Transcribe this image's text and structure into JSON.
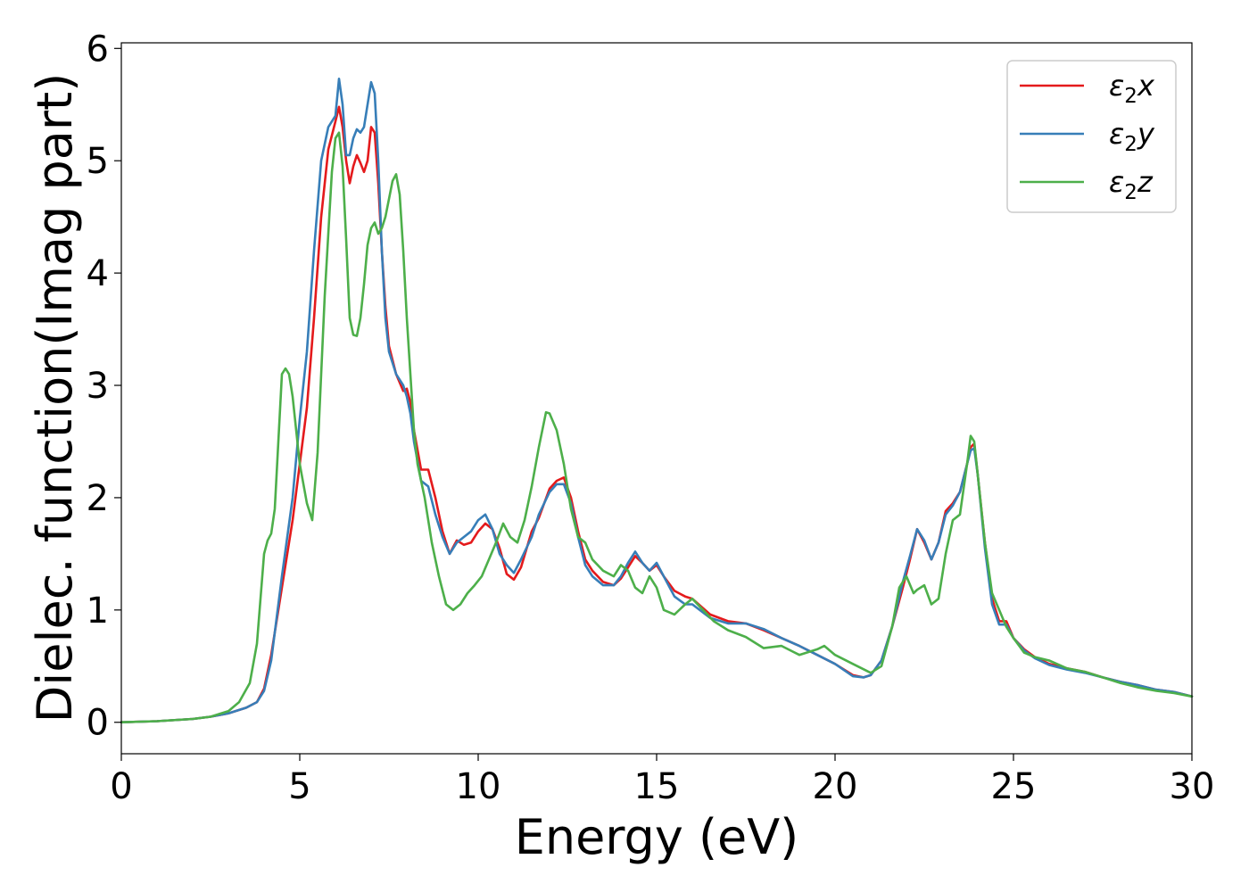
{
  "chart_data": {
    "type": "line",
    "xlabel": "Energy (eV)",
    "ylabel": "Dielec. function(Imag part)",
    "xlim": [
      0,
      30
    ],
    "ylim": [
      -0.28,
      6.05
    ],
    "xticks": [
      0,
      5,
      10,
      15,
      20,
      25,
      30
    ],
    "yticks": [
      0,
      1,
      2,
      3,
      4,
      5,
      6
    ],
    "grid": false,
    "legend_position": "top-right",
    "series": [
      {
        "name": "ε₂x",
        "legend_base": "ε",
        "legend_sub": "2",
        "legend_var": "x",
        "color": "#e41a1c",
        "x": [
          0,
          1,
          2,
          2.5,
          3,
          3.5,
          3.8,
          4.0,
          4.2,
          4.5,
          4.8,
          5.0,
          5.2,
          5.4,
          5.6,
          5.8,
          6.0,
          6.1,
          6.2,
          6.3,
          6.4,
          6.5,
          6.6,
          6.7,
          6.8,
          6.9,
          7.0,
          7.1,
          7.2,
          7.3,
          7.4,
          7.5,
          7.7,
          7.9,
          8.0,
          8.1,
          8.2,
          8.4,
          8.6,
          8.8,
          9.0,
          9.2,
          9.4,
          9.6,
          9.8,
          10.0,
          10.2,
          10.4,
          10.6,
          10.8,
          11.0,
          11.2,
          11.5,
          11.7,
          12.0,
          12.2,
          12.4,
          12.6,
          12.8,
          13.0,
          13.2,
          13.5,
          13.8,
          14.0,
          14.2,
          14.4,
          14.6,
          14.8,
          15.0,
          15.2,
          15.5,
          15.8,
          16.0,
          16.5,
          17.0,
          17.5,
          18.0,
          18.5,
          19.0,
          19.5,
          20.0,
          20.5,
          20.8,
          21.0,
          21.3,
          21.6,
          21.9,
          22.1,
          22.3,
          22.5,
          22.7,
          22.9,
          23.1,
          23.3,
          23.5,
          23.7,
          23.8,
          23.9,
          24.0,
          24.2,
          24.4,
          24.6,
          24.8,
          25.0,
          25.3,
          25.6,
          26.0,
          26.5,
          27.0,
          27.5,
          28.0,
          28.5,
          29.0,
          29.5,
          30.0
        ],
        "y": [
          0,
          0.01,
          0.03,
          0.05,
          0.08,
          0.13,
          0.18,
          0.3,
          0.6,
          1.2,
          1.8,
          2.3,
          2.8,
          3.6,
          4.5,
          5.1,
          5.35,
          5.48,
          5.3,
          5.0,
          4.8,
          4.95,
          5.05,
          4.98,
          4.9,
          5.0,
          5.3,
          5.25,
          4.8,
          4.2,
          3.7,
          3.35,
          3.1,
          2.95,
          2.97,
          2.85,
          2.6,
          2.25,
          2.25,
          2.0,
          1.7,
          1.5,
          1.62,
          1.58,
          1.6,
          1.7,
          1.77,
          1.72,
          1.55,
          1.32,
          1.27,
          1.38,
          1.7,
          1.82,
          2.08,
          2.15,
          2.18,
          2.0,
          1.7,
          1.45,
          1.35,
          1.25,
          1.22,
          1.28,
          1.38,
          1.48,
          1.42,
          1.35,
          1.4,
          1.3,
          1.17,
          1.12,
          1.1,
          0.96,
          0.9,
          0.88,
          0.82,
          0.75,
          0.68,
          0.6,
          0.52,
          0.42,
          0.4,
          0.42,
          0.55,
          0.85,
          1.2,
          1.45,
          1.72,
          1.6,
          1.45,
          1.6,
          1.88,
          1.95,
          2.05,
          2.3,
          2.45,
          2.48,
          2.2,
          1.6,
          1.1,
          0.9,
          0.9,
          0.75,
          0.65,
          0.58,
          0.52,
          0.48,
          0.45,
          0.4,
          0.36,
          0.33,
          0.29,
          0.27,
          0.23
        ]
      },
      {
        "name": "ε₂y",
        "legend_base": "ε",
        "legend_sub": "2",
        "legend_var": "y",
        "color": "#377eb8",
        "x": [
          0,
          1,
          2,
          2.5,
          3,
          3.5,
          3.8,
          4.0,
          4.2,
          4.5,
          4.8,
          5.0,
          5.2,
          5.4,
          5.6,
          5.8,
          6.0,
          6.1,
          6.2,
          6.3,
          6.4,
          6.5,
          6.6,
          6.7,
          6.8,
          6.9,
          7.0,
          7.1,
          7.2,
          7.3,
          7.4,
          7.5,
          7.7,
          7.9,
          8.0,
          8.1,
          8.2,
          8.4,
          8.6,
          8.8,
          9.0,
          9.2,
          9.4,
          9.6,
          9.8,
          10.0,
          10.2,
          10.4,
          10.6,
          10.8,
          11.0,
          11.2,
          11.5,
          11.7,
          12.0,
          12.2,
          12.4,
          12.6,
          12.8,
          13.0,
          13.2,
          13.5,
          13.8,
          14.0,
          14.2,
          14.4,
          14.6,
          14.8,
          15.0,
          15.2,
          15.5,
          15.8,
          16.0,
          16.5,
          17.0,
          17.5,
          18.0,
          18.5,
          19.0,
          19.5,
          20.0,
          20.5,
          20.8,
          21.0,
          21.3,
          21.6,
          21.9,
          22.1,
          22.3,
          22.5,
          22.7,
          22.9,
          23.1,
          23.3,
          23.5,
          23.7,
          23.8,
          23.9,
          24.0,
          24.2,
          24.4,
          24.6,
          24.8,
          25.0,
          25.3,
          25.6,
          26.0,
          26.5,
          27.0,
          27.5,
          28.0,
          28.5,
          29.0,
          29.5,
          30.0
        ],
        "y": [
          0,
          0.01,
          0.03,
          0.05,
          0.08,
          0.13,
          0.18,
          0.28,
          0.55,
          1.3,
          2.0,
          2.7,
          3.3,
          4.2,
          5.0,
          5.3,
          5.4,
          5.73,
          5.5,
          5.05,
          5.05,
          5.2,
          5.28,
          5.25,
          5.3,
          5.5,
          5.7,
          5.6,
          5.0,
          4.2,
          3.6,
          3.3,
          3.1,
          3.0,
          2.9,
          2.75,
          2.5,
          2.15,
          2.1,
          1.85,
          1.65,
          1.5,
          1.6,
          1.65,
          1.7,
          1.8,
          1.85,
          1.72,
          1.5,
          1.4,
          1.33,
          1.45,
          1.65,
          1.85,
          2.05,
          2.12,
          2.12,
          1.95,
          1.65,
          1.4,
          1.3,
          1.22,
          1.22,
          1.3,
          1.42,
          1.52,
          1.42,
          1.35,
          1.42,
          1.3,
          1.12,
          1.05,
          1.05,
          0.93,
          0.88,
          0.88,
          0.83,
          0.75,
          0.68,
          0.6,
          0.52,
          0.41,
          0.4,
          0.42,
          0.55,
          0.85,
          1.25,
          1.48,
          1.72,
          1.62,
          1.45,
          1.6,
          1.85,
          1.93,
          2.05,
          2.3,
          2.42,
          2.44,
          2.2,
          1.55,
          1.05,
          0.87,
          0.87,
          0.75,
          0.64,
          0.57,
          0.51,
          0.47,
          0.44,
          0.4,
          0.36,
          0.33,
          0.29,
          0.27,
          0.23
        ]
      },
      {
        "name": "ε₂z",
        "legend_base": "ε",
        "legend_sub": "2",
        "legend_var": "z",
        "color": "#4daf4a",
        "x": [
          0,
          1,
          2,
          2.5,
          3,
          3.3,
          3.6,
          3.8,
          3.9,
          4.0,
          4.1,
          4.2,
          4.3,
          4.4,
          4.5,
          4.6,
          4.7,
          4.8,
          5.0,
          5.2,
          5.35,
          5.5,
          5.7,
          5.9,
          6.0,
          6.1,
          6.2,
          6.3,
          6.4,
          6.5,
          6.6,
          6.7,
          6.8,
          6.9,
          7.0,
          7.1,
          7.2,
          7.3,
          7.4,
          7.6,
          7.7,
          7.8,
          7.9,
          8.0,
          8.1,
          8.2,
          8.3,
          8.5,
          8.7,
          8.9,
          9.1,
          9.3,
          9.5,
          9.7,
          9.9,
          10.1,
          10.3,
          10.5,
          10.7,
          10.9,
          11.1,
          11.3,
          11.5,
          11.7,
          11.9,
          12.0,
          12.2,
          12.4,
          12.6,
          12.8,
          13.0,
          13.2,
          13.5,
          13.8,
          14.0,
          14.2,
          14.4,
          14.6,
          14.8,
          15.0,
          15.2,
          15.5,
          15.8,
          16.0,
          16.3,
          16.6,
          17.0,
          17.5,
          18.0,
          18.5,
          19.0,
          19.5,
          19.7,
          20.0,
          20.5,
          21.0,
          21.3,
          21.6,
          21.8,
          22.0,
          22.2,
          22.3,
          22.5,
          22.7,
          22.9,
          23.1,
          23.3,
          23.5,
          23.7,
          23.8,
          23.9,
          24.0,
          24.2,
          24.4,
          24.6,
          24.8,
          25.0,
          25.3,
          25.6,
          26.0,
          26.5,
          27.0,
          27.5,
          28.0,
          28.5,
          29.0,
          29.5,
          30.0
        ],
        "y": [
          0,
          0.01,
          0.03,
          0.05,
          0.1,
          0.18,
          0.35,
          0.7,
          1.1,
          1.5,
          1.62,
          1.68,
          1.9,
          2.5,
          3.1,
          3.15,
          3.1,
          2.9,
          2.3,
          1.95,
          1.8,
          2.4,
          3.8,
          4.9,
          5.2,
          5.25,
          4.95,
          4.3,
          3.6,
          3.45,
          3.44,
          3.6,
          3.9,
          4.25,
          4.4,
          4.45,
          4.35,
          4.4,
          4.5,
          4.82,
          4.88,
          4.7,
          4.2,
          3.6,
          3.1,
          2.6,
          2.3,
          2.0,
          1.6,
          1.3,
          1.05,
          1.0,
          1.05,
          1.15,
          1.22,
          1.3,
          1.45,
          1.6,
          1.77,
          1.65,
          1.6,
          1.8,
          2.1,
          2.45,
          2.76,
          2.75,
          2.6,
          2.3,
          1.9,
          1.65,
          1.6,
          1.45,
          1.35,
          1.3,
          1.4,
          1.35,
          1.2,
          1.15,
          1.3,
          1.2,
          1.0,
          0.96,
          1.05,
          1.1,
          1.0,
          0.9,
          0.82,
          0.76,
          0.66,
          0.68,
          0.6,
          0.65,
          0.68,
          0.6,
          0.52,
          0.44,
          0.5,
          0.85,
          1.2,
          1.3,
          1.15,
          1.18,
          1.22,
          1.05,
          1.1,
          1.5,
          1.8,
          1.85,
          2.3,
          2.55,
          2.5,
          2.2,
          1.6,
          1.15,
          1.0,
          0.85,
          0.75,
          0.62,
          0.58,
          0.55,
          0.48,
          0.45,
          0.4,
          0.35,
          0.31,
          0.28,
          0.26,
          0.23
        ]
      }
    ]
  }
}
